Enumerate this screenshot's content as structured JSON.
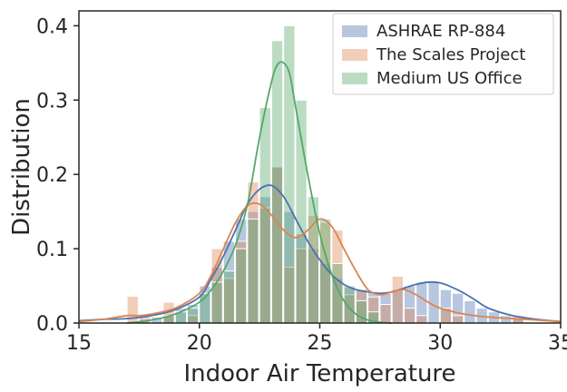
{
  "chart_data": {
    "type": "histogram",
    "xlabel": "Indoor Air Temperature",
    "ylabel": "Distribution",
    "xlim": [
      15,
      35
    ],
    "ylim": [
      0,
      0.42
    ],
    "x_ticks": [
      15,
      20,
      25,
      30,
      35
    ],
    "x_tick_labels": [
      "15",
      "20",
      "25",
      "30",
      "35"
    ],
    "y_ticks": [
      0.0,
      0.1,
      0.2,
      0.3,
      0.4
    ],
    "y_tick_labels": [
      "0.0",
      "0.1",
      "0.2",
      "0.3",
      "0.4"
    ],
    "grid": false,
    "legend_position": "top-right",
    "series": [
      {
        "name": "ASHRAE RP-884",
        "color": "#4c72b0",
        "bins": [
          {
            "x0": 17.5,
            "x1": 18.0,
            "y": 0.005
          },
          {
            "x0": 18.0,
            "x1": 18.5,
            "y": 0.008
          },
          {
            "x0": 18.5,
            "x1": 19.0,
            "y": 0.012
          },
          {
            "x0": 19.0,
            "x1": 19.5,
            "y": 0.02
          },
          {
            "x0": 19.5,
            "x1": 20.0,
            "y": 0.025
          },
          {
            "x0": 20.0,
            "x1": 20.5,
            "y": 0.05
          },
          {
            "x0": 20.5,
            "x1": 21.0,
            "y": 0.075
          },
          {
            "x0": 21.0,
            "x1": 21.5,
            "y": 0.11
          },
          {
            "x0": 21.5,
            "x1": 22.0,
            "y": 0.14
          },
          {
            "x0": 22.0,
            "x1": 22.5,
            "y": 0.15
          },
          {
            "x0": 22.5,
            "x1": 23.0,
            "y": 0.17
          },
          {
            "x0": 23.0,
            "x1": 23.5,
            "y": 0.21
          },
          {
            "x0": 23.5,
            "x1": 24.0,
            "y": 0.15
          },
          {
            "x0": 24.0,
            "x1": 24.5,
            "y": 0.12
          },
          {
            "x0": 24.5,
            "x1": 25.0,
            "y": 0.1
          },
          {
            "x0": 25.0,
            "x1": 25.5,
            "y": 0.08
          },
          {
            "x0": 25.5,
            "x1": 26.0,
            "y": 0.06
          },
          {
            "x0": 26.0,
            "x1": 26.5,
            "y": 0.048
          },
          {
            "x0": 26.5,
            "x1": 27.0,
            "y": 0.045
          },
          {
            "x0": 27.0,
            "x1": 27.5,
            "y": 0.042
          },
          {
            "x0": 27.5,
            "x1": 28.0,
            "y": 0.04
          },
          {
            "x0": 28.0,
            "x1": 28.5,
            "y": 0.045
          },
          {
            "x0": 28.5,
            "x1": 29.0,
            "y": 0.05
          },
          {
            "x0": 29.0,
            "x1": 29.5,
            "y": 0.055
          },
          {
            "x0": 29.5,
            "x1": 30.0,
            "y": 0.055
          },
          {
            "x0": 30.0,
            "x1": 30.5,
            "y": 0.045
          },
          {
            "x0": 30.5,
            "x1": 31.0,
            "y": 0.04
          },
          {
            "x0": 31.0,
            "x1": 31.5,
            "y": 0.03
          },
          {
            "x0": 31.5,
            "x1": 32.0,
            "y": 0.02
          },
          {
            "x0": 32.0,
            "x1": 32.5,
            "y": 0.015
          },
          {
            "x0": 32.5,
            "x1": 33.0,
            "y": 0.01
          },
          {
            "x0": 33.0,
            "x1": 33.5,
            "y": 0.006
          }
        ],
        "kde": {
          "x": [
            15,
            16,
            17,
            18,
            19,
            20,
            20.5,
            21,
            21.5,
            22,
            22.5,
            23,
            23.5,
            24,
            24.5,
            25,
            25.5,
            26,
            26.5,
            27,
            27.5,
            28,
            28.5,
            29,
            29.5,
            30,
            30.5,
            31,
            31.5,
            32,
            33,
            34,
            35
          ],
          "y": [
            0.003,
            0.005,
            0.006,
            0.01,
            0.018,
            0.035,
            0.06,
            0.09,
            0.125,
            0.16,
            0.18,
            0.185,
            0.17,
            0.14,
            0.11,
            0.085,
            0.065,
            0.052,
            0.045,
            0.042,
            0.04,
            0.042,
            0.047,
            0.052,
            0.055,
            0.054,
            0.048,
            0.04,
            0.03,
            0.02,
            0.01,
            0.005,
            0.002
          ]
        }
      },
      {
        "name": "The Scales Project",
        "color": "#dd8452",
        "bins": [
          {
            "x0": 17.0,
            "x1": 17.5,
            "y": 0.036
          },
          {
            "x0": 17.5,
            "x1": 18.0,
            "y": 0.01
          },
          {
            "x0": 18.5,
            "x1": 19.0,
            "y": 0.028
          },
          {
            "x0": 19.5,
            "x1": 20.0,
            "y": 0.01
          },
          {
            "x0": 20.5,
            "x1": 21.0,
            "y": 0.1
          },
          {
            "x0": 21.0,
            "x1": 21.5,
            "y": 0.06
          },
          {
            "x0": 21.5,
            "x1": 22.0,
            "y": 0.11
          },
          {
            "x0": 22.0,
            "x1": 22.5,
            "y": 0.19
          },
          {
            "x0": 22.5,
            "x1": 23.0,
            "y": 0.155
          },
          {
            "x0": 23.0,
            "x1": 23.5,
            "y": 0.21
          },
          {
            "x0": 23.5,
            "x1": 24.0,
            "y": 0.075
          },
          {
            "x0": 24.0,
            "x1": 24.5,
            "y": 0.1
          },
          {
            "x0": 24.5,
            "x1": 25.0,
            "y": 0.145
          },
          {
            "x0": 25.0,
            "x1": 25.5,
            "y": 0.135
          },
          {
            "x0": 25.5,
            "x1": 26.0,
            "y": 0.125
          },
          {
            "x0": 26.0,
            "x1": 26.5,
            "y": 0.038
          },
          {
            "x0": 26.5,
            "x1": 27.0,
            "y": 0.045
          },
          {
            "x0": 27.0,
            "x1": 27.5,
            "y": 0.035
          },
          {
            "x0": 27.5,
            "x1": 28.0,
            "y": 0.025
          },
          {
            "x0": 28.0,
            "x1": 28.5,
            "y": 0.063
          },
          {
            "x0": 28.5,
            "x1": 29.0,
            "y": 0.02
          },
          {
            "x0": 29.0,
            "x1": 29.5,
            "y": 0.01
          },
          {
            "x0": 30.0,
            "x1": 30.5,
            "y": 0.02
          },
          {
            "x0": 30.5,
            "x1": 31.0,
            "y": 0.01
          },
          {
            "x0": 33.0,
            "x1": 33.5,
            "y": 0.01
          }
        ],
        "kde": {
          "x": [
            15,
            16,
            17,
            17.5,
            18,
            19,
            20,
            20.5,
            21,
            21.5,
            22,
            22.5,
            23,
            23.5,
            24,
            24.5,
            25,
            25.5,
            26,
            26.5,
            27,
            27.5,
            28,
            28.5,
            29,
            29.5,
            30,
            31,
            32,
            33,
            34,
            35
          ],
          "y": [
            0.002,
            0.005,
            0.01,
            0.01,
            0.012,
            0.02,
            0.04,
            0.065,
            0.1,
            0.135,
            0.158,
            0.16,
            0.145,
            0.125,
            0.115,
            0.125,
            0.14,
            0.13,
            0.1,
            0.07,
            0.045,
            0.038,
            0.042,
            0.045,
            0.038,
            0.028,
            0.02,
            0.012,
            0.008,
            0.006,
            0.004,
            0.002
          ]
        }
      },
      {
        "name": "Medium US Office",
        "color": "#55a868",
        "bins": [
          {
            "x0": 18.5,
            "x1": 19.0,
            "y": 0.01
          },
          {
            "x0": 19.0,
            "x1": 19.5,
            "y": 0.015
          },
          {
            "x0": 19.5,
            "x1": 20.0,
            "y": 0.02
          },
          {
            "x0": 20.0,
            "x1": 20.5,
            "y": 0.04
          },
          {
            "x0": 20.5,
            "x1": 21.0,
            "y": 0.055
          },
          {
            "x0": 21.0,
            "x1": 21.5,
            "y": 0.07
          },
          {
            "x0": 21.5,
            "x1": 22.0,
            "y": 0.1
          },
          {
            "x0": 22.0,
            "x1": 22.5,
            "y": 0.14
          },
          {
            "x0": 22.5,
            "x1": 23.0,
            "y": 0.29
          },
          {
            "x0": 23.0,
            "x1": 23.5,
            "y": 0.38
          },
          {
            "x0": 23.5,
            "x1": 24.0,
            "y": 0.4
          },
          {
            "x0": 24.0,
            "x1": 24.5,
            "y": 0.3
          },
          {
            "x0": 24.5,
            "x1": 25.0,
            "y": 0.17
          },
          {
            "x0": 25.0,
            "x1": 25.5,
            "y": 0.14
          },
          {
            "x0": 25.5,
            "x1": 26.0,
            "y": 0.08
          },
          {
            "x0": 26.0,
            "x1": 26.5,
            "y": 0.05
          },
          {
            "x0": 26.5,
            "x1": 27.0,
            "y": 0.03
          },
          {
            "x0": 27.0,
            "x1": 27.5,
            "y": 0.015
          }
        ],
        "kde": {
          "x": [
            17,
            18,
            19,
            20,
            20.5,
            21,
            21.5,
            22,
            22.5,
            23,
            23.25,
            23.5,
            23.75,
            24,
            24.5,
            25,
            25.5,
            26,
            26.5,
            27,
            27.5,
            28
          ],
          "y": [
            0.0,
            0.004,
            0.012,
            0.028,
            0.045,
            0.07,
            0.105,
            0.16,
            0.25,
            0.325,
            0.348,
            0.35,
            0.335,
            0.29,
            0.2,
            0.12,
            0.065,
            0.03,
            0.012,
            0.004,
            0.001,
            0.0
          ]
        }
      }
    ]
  }
}
